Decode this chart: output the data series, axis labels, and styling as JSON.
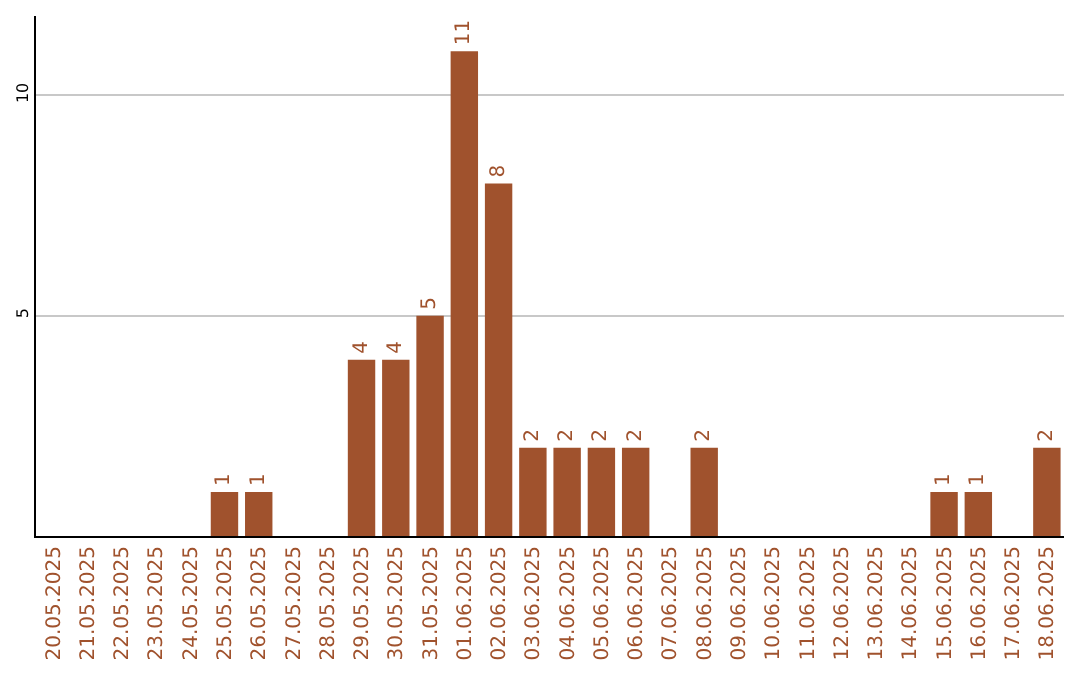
{
  "chart_data": {
    "type": "bar",
    "categories": [
      "20.05.2025",
      "21.05.2025",
      "22.05.2025",
      "23.05.2025",
      "24.05.2025",
      "25.05.2025",
      "26.05.2025",
      "27.05.2025",
      "28.05.2025",
      "29.05.2025",
      "30.05.2025",
      "31.05.2025",
      "01.06.2025",
      "02.06.2025",
      "03.06.2025",
      "04.06.2025",
      "05.06.2025",
      "06.06.2025",
      "07.06.2025",
      "08.06.2025",
      "09.06.2025",
      "10.06.2025",
      "11.06.2025",
      "12.06.2025",
      "13.06.2025",
      "14.06.2025",
      "15.06.2025",
      "16.06.2025",
      "17.06.2025",
      "18.06.2025"
    ],
    "values": [
      0,
      0,
      0,
      0,
      0,
      1,
      1,
      0,
      0,
      4,
      4,
      5,
      11,
      8,
      2,
      2,
      2,
      2,
      0,
      2,
      0,
      0,
      0,
      0,
      0,
      0,
      1,
      1,
      0,
      2
    ],
    "value_labels": [
      null,
      null,
      null,
      null,
      null,
      "1",
      "1",
      null,
      null,
      "4",
      "4",
      "5",
      "11",
      "8",
      "2",
      "2",
      "2",
      "2",
      null,
      "2",
      null,
      null,
      null,
      null,
      null,
      null,
      "1",
      "1",
      null,
      "2"
    ],
    "color": "#a0522d",
    "ylim": [
      0,
      11.8
    ],
    "yticks": [
      5,
      10
    ],
    "grid": "y",
    "legend": false
  }
}
